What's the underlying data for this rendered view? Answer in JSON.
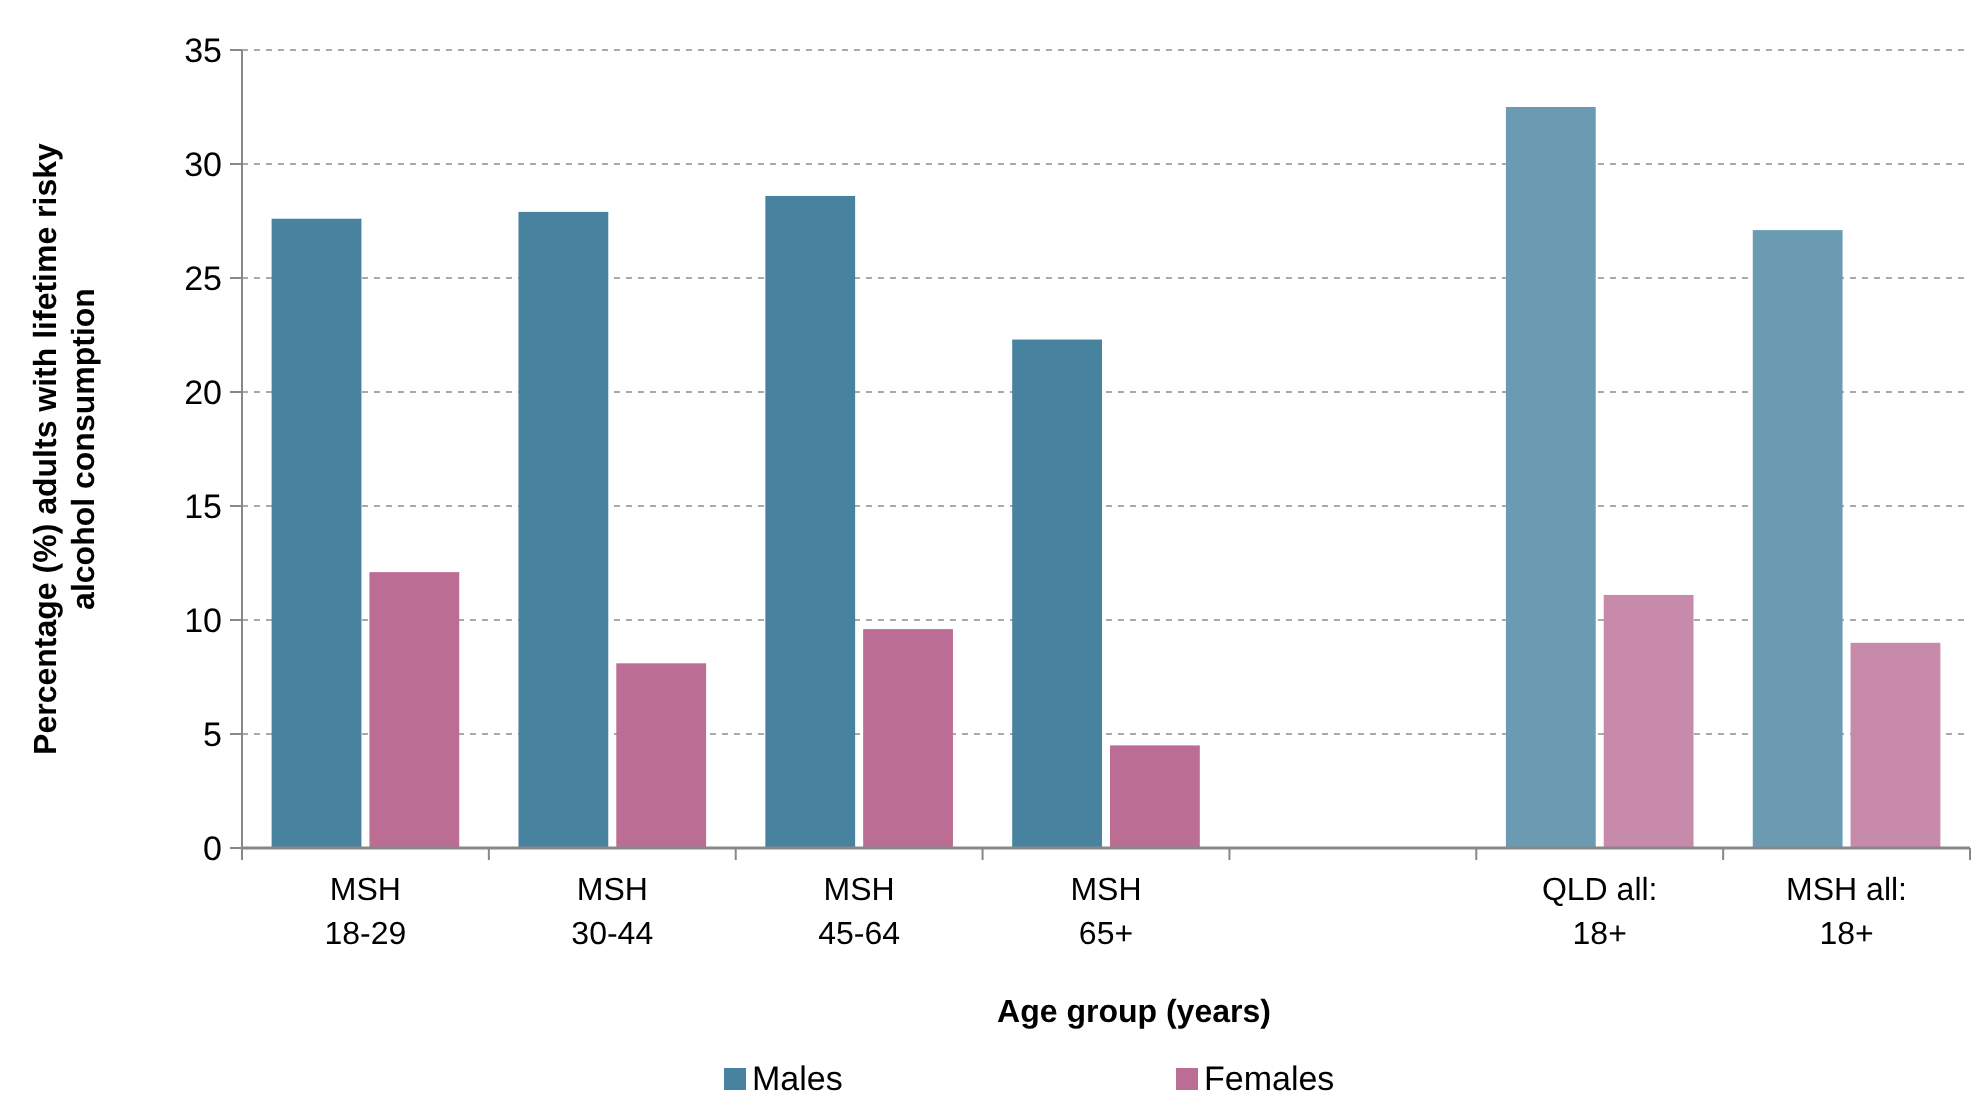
{
  "chart_data": {
    "type": "bar",
    "xlabel": "Age group (years)",
    "ylabel": "Percentage (%)  adults with lifetime risky\nalcohol consumption",
    "categories": [
      "MSH 18-29",
      "MSH 30-44",
      "MSH 45-64",
      "MSH 65+",
      null,
      "QLD all: 18+",
      "MSH all: 18+"
    ],
    "series": [
      {
        "name": "Males",
        "color": "#47829f",
        "colors": [
          "#47829f",
          "#47829f",
          "#47829f",
          "#47829f",
          null,
          "#6b9bb3",
          "#6b9bb3"
        ],
        "values": [
          27.6,
          27.9,
          28.6,
          22.3,
          null,
          32.5,
          27.1
        ]
      },
      {
        "name": "Females",
        "color": "#bb6d94",
        "colors": [
          "#bb6d94",
          "#bb6d94",
          "#bb6d94",
          "#bb6d94",
          null,
          "#c88aaa",
          "#c88aaa"
        ],
        "values": [
          12.1,
          8.1,
          9.6,
          4.5,
          null,
          11.1,
          9.0
        ]
      }
    ],
    "ylim": [
      0,
      35
    ],
    "yticks": [
      0,
      5,
      10,
      15,
      20,
      25,
      30,
      35
    ],
    "grid": "y",
    "legend": "bottom"
  }
}
